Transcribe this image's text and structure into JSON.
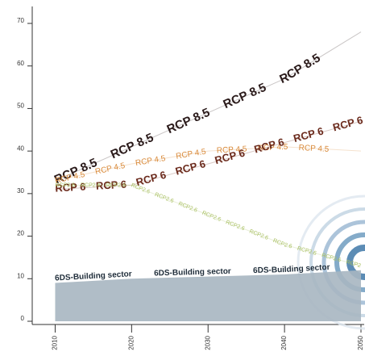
{
  "chart_data": {
    "type": "line",
    "x": [
      2010,
      2020,
      2030,
      2040,
      2050
    ],
    "xlim": [
      2007,
      2050
    ],
    "xticks": [
      2010,
      2020,
      2030,
      2040,
      2050
    ],
    "ylim": [
      0,
      70
    ],
    "yticks": [
      0,
      10,
      20,
      30,
      40,
      50,
      60,
      70
    ],
    "series": [
      {
        "name": "RCP 8.5",
        "color": "#2a1a1a",
        "values": [
          33,
          41,
          49,
          57,
          68
        ]
      },
      {
        "name": "RCP 4.5",
        "color": "#d98a3a",
        "values": [
          33,
          37,
          40,
          41,
          40
        ]
      },
      {
        "name": "RCP 6",
        "color": "#6b2a1c",
        "values": [
          31,
          32,
          37,
          42,
          47
        ]
      },
      {
        "name": "RCP2.6",
        "color": "#a9c062",
        "values": [
          32,
          32,
          25,
          18,
          13
        ]
      },
      {
        "name": "6DS-Building sector",
        "color": "#a7b6c1",
        "style": "area",
        "values": [
          9,
          10,
          10.5,
          11,
          12
        ]
      }
    ]
  }
}
